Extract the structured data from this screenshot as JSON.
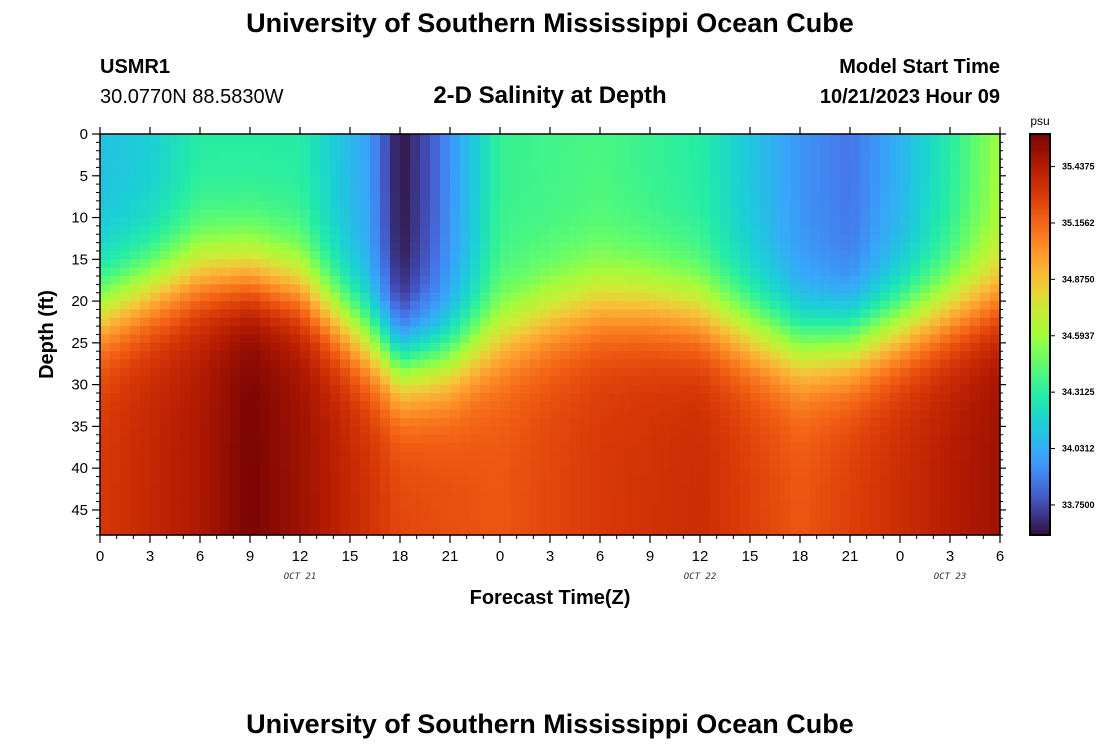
{
  "page": {
    "title": "University of Southern Mississippi Ocean Cube",
    "station_id": "USMR1",
    "station_coords": "30.0770N  88.5830W",
    "subtitle": "2-D Salinity at Depth",
    "model_label": "Model Start Time",
    "model_time": "10/21/2023 Hour 09",
    "footer_title": "University of Southern Mississippi Ocean Cube"
  },
  "chart_data": {
    "type": "heatmap",
    "title": "2-D Salinity at Depth",
    "xlabel": "Forecast Time(Z)",
    "ylabel": "Depth (ft)",
    "x_range_hours": [
      0,
      54
    ],
    "y_range": [
      0,
      48
    ],
    "y_inverted": true,
    "x_tick_labels": [
      "0",
      "3",
      "6",
      "9",
      "12",
      "15",
      "18",
      "21",
      "0",
      "3",
      "6",
      "9",
      "12",
      "15",
      "18",
      "21",
      "0",
      "3",
      "6"
    ],
    "y_tick_labels": [
      "0",
      "5",
      "10",
      "15",
      "20",
      "25",
      "30",
      "35",
      "40",
      "45"
    ],
    "date_labels": [
      {
        "text": "OCT 21",
        "hour": 12
      },
      {
        "text": "OCT 22",
        "hour": 36
      },
      {
        "text": "OCT 23",
        "hour": 51
      }
    ],
    "colorbar": {
      "unit": "psu",
      "min": 33.6,
      "max": 35.6,
      "tick_labels": [
        "35.4375",
        "35.1562",
        "34.8750",
        "34.5937",
        "34.3125",
        "34.0312",
        "33.7500"
      ],
      "tick_values": [
        35.4375,
        35.15625,
        34.875,
        34.59375,
        34.3125,
        34.03125,
        33.75
      ]
    },
    "halocline_depth_ft": [
      {
        "hour": 0,
        "depth": 21
      },
      {
        "hour": 3,
        "depth": 18.5
      },
      {
        "hour": 6,
        "depth": 16.5
      },
      {
        "hour": 9,
        "depth": 16.5
      },
      {
        "hour": 12,
        "depth": 18
      },
      {
        "hour": 15,
        "depth": 23
      },
      {
        "hour": 18,
        "depth": 27.5
      },
      {
        "hour": 21,
        "depth": 27
      },
      {
        "hour": 24,
        "depth": 24
      },
      {
        "hour": 27,
        "depth": 21.5
      },
      {
        "hour": 30,
        "depth": 20
      },
      {
        "hour": 33,
        "depth": 20
      },
      {
        "hour": 36,
        "depth": 21
      },
      {
        "hour": 39,
        "depth": 23.5
      },
      {
        "hour": 42,
        "depth": 25.5
      },
      {
        "hour": 45,
        "depth": 25
      },
      {
        "hour": 48,
        "depth": 23
      },
      {
        "hour": 51,
        "depth": 21
      },
      {
        "hour": 54,
        "depth": 19.5
      }
    ],
    "surface_salinity_psu": [
      {
        "hour": 0,
        "value": 34.1
      },
      {
        "hour": 3,
        "value": 34.15
      },
      {
        "hour": 6,
        "value": 34.3
      },
      {
        "hour": 12,
        "value": 34.3
      },
      {
        "hour": 16,
        "value": 34.0
      },
      {
        "hour": 18,
        "value": 33.6
      },
      {
        "hour": 20,
        "value": 33.8
      },
      {
        "hour": 24,
        "value": 34.35
      },
      {
        "hour": 30,
        "value": 34.4
      },
      {
        "hour": 36,
        "value": 34.3
      },
      {
        "hour": 42,
        "value": 33.95
      },
      {
        "hour": 45,
        "value": 33.85
      },
      {
        "hour": 48,
        "value": 34.05
      },
      {
        "hour": 51,
        "value": 34.3
      },
      {
        "hour": 54,
        "value": 34.6
      }
    ],
    "bottom_salinity_psu": [
      {
        "hour": 0,
        "value": 35.3
      },
      {
        "hour": 6,
        "value": 35.45
      },
      {
        "hour": 9,
        "value": 35.6
      },
      {
        "hour": 12,
        "value": 35.5
      },
      {
        "hour": 18,
        "value": 35.25
      },
      {
        "hour": 24,
        "value": 35.2
      },
      {
        "hour": 30,
        "value": 35.3
      },
      {
        "hour": 36,
        "value": 35.35
      },
      {
        "hour": 42,
        "value": 35.2
      },
      {
        "hour": 48,
        "value": 35.35
      },
      {
        "hour": 54,
        "value": 35.5
      }
    ]
  }
}
